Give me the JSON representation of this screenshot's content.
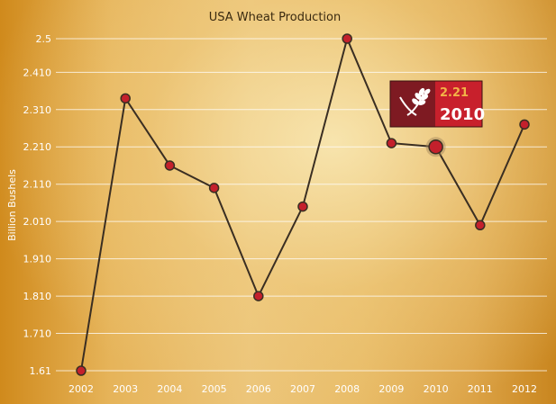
{
  "chart_data": {
    "type": "line",
    "title": "USA Wheat Production",
    "xlabel": "",
    "ylabel": "Billion Bushels",
    "categories": [
      "2002",
      "2003",
      "2004",
      "2005",
      "2006",
      "2007",
      "2008",
      "2009",
      "2010",
      "2011",
      "2012"
    ],
    "series": [
      {
        "name": "Wheat Production",
        "values": [
          1.61,
          2.34,
          2.16,
          2.1,
          1.81,
          2.05,
          2.5,
          2.22,
          2.21,
          2.0,
          2.27
        ]
      }
    ],
    "ylim": [
      1.61,
      2.5
    ],
    "yticks": [
      "1.61",
      "1.710",
      "1.810",
      "1.910",
      "2.010",
      "2.110",
      "2.210",
      "2.310",
      "2.410",
      "2.5"
    ],
    "ytick_values": [
      1.61,
      1.71,
      1.81,
      1.91,
      2.01,
      2.11,
      2.21,
      2.31,
      2.41,
      2.5
    ],
    "grid": true,
    "legend": "none",
    "tooltip": {
      "value": "2.21",
      "year": "2010",
      "index": 8,
      "icon": "wheat-icon"
    }
  },
  "colors": {
    "line": "#3a2e22",
    "marker": "#c4202c",
    "tooltip_dark": "#7e1a22",
    "tooltip_light": "#c8202c",
    "tooltip_value": "#f2b347"
  }
}
